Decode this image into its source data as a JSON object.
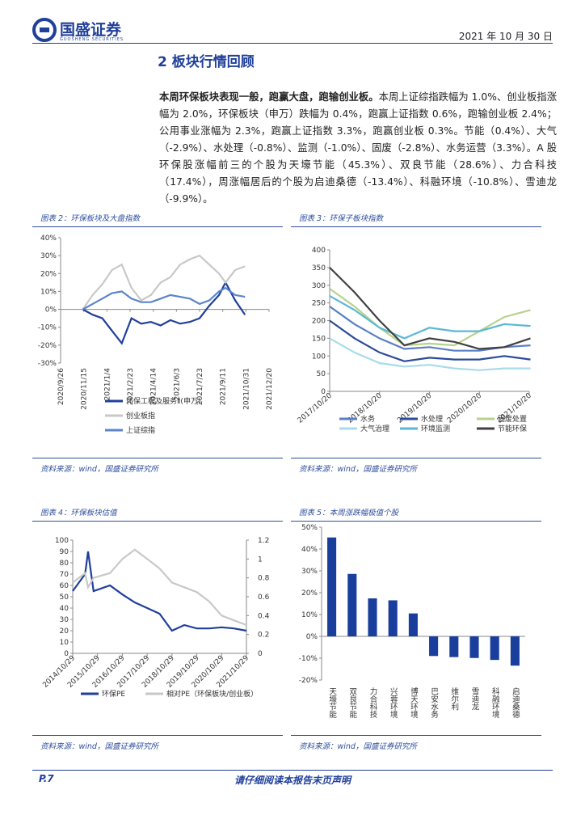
{
  "header": {
    "logo": "国盛证券",
    "logo_sub": "GUOSHENG SECURITIES",
    "date": "2021 年 10 月 30 日"
  },
  "section": {
    "title": "2 板块行情回顾"
  },
  "paragraph": {
    "bold": "本周环保板块表现一般，跑赢大盘，跑输创业板。",
    "text": "本周上证综指跌幅为 1.0%、创业板指涨幅为 2.0%，环保板块（申万）跌幅为 0.4%，跑赢上证指数 0.6%，跑输创业板 2.4%；公用事业涨幅为 2.3%，跑赢上证指数 3.3%，跑赢创业板 0.3%。节能（0.4%）、大气（-2.9%）、水处理（-0.8%）、监测（-1.0%）、固废（-2.8%）、水务运营（3.3%）。A 股环保股涨幅前三的个股为天壕节能（45.3%）、双良节能（28.6%）、力合科技（17.4%），周涨幅居后的个股为启迪桑德（-13.4%）、科融环境（-10.8%）、雪迪龙（-9.9%）。"
  },
  "chart_data": [
    {
      "type": "line",
      "title": "图表 2：环保板块及大盘指数",
      "source": "资料来源：wind，国盛证券研究所",
      "x": [
        "2020/11/13",
        "2020/12/4",
        "2020/12/25",
        "2021/1/15",
        "2021/2/5",
        "2021/2/26",
        "2021/3/19",
        "2021/4/9",
        "2021/4/30",
        "2021/5/21",
        "2021/6/11",
        "2021/7/2",
        "2021/7/23",
        "2021/8/13",
        "2021/9/3",
        "2021/9/17",
        "2021/10/8",
        "2021/10/29"
      ],
      "xticks": [
        "2020/9/26",
        "2020/11/15",
        "2021/1/4",
        "2021/2/23",
        "2021/4/14",
        "2021/6/3",
        "2021/7/23",
        "2021/9/11",
        "2021/10/31",
        "2021/12/20"
      ],
      "ylim": [
        -30,
        40
      ],
      "yticks": [
        {
          "value": -30,
          "label": "-30%"
        },
        {
          "value": -20,
          "label": "-20%"
        },
        {
          "value": -10,
          "label": "-10%"
        },
        {
          "value": 0,
          "label": "0%"
        },
        {
          "value": 10,
          "label": "10%"
        },
        {
          "value": 20,
          "label": "20%"
        },
        {
          "value": 30,
          "label": "30%"
        },
        {
          "value": 40,
          "label": "40%"
        }
      ],
      "series": [
        {
          "name": "环保工程及服务Ⅱ(申万)",
          "color": "#1f3f9a",
          "values": [
            0,
            -3,
            -5,
            -12,
            -19,
            -5,
            -8,
            -7,
            -9,
            -6,
            -8,
            -7,
            -5,
            2,
            8,
            15,
            5,
            -3
          ]
        },
        {
          "name": "创业板指",
          "color": "#c8c8c8",
          "values": [
            0,
            8,
            14,
            22,
            25,
            12,
            5,
            8,
            15,
            18,
            25,
            28,
            30,
            25,
            20,
            15,
            22,
            24
          ]
        },
        {
          "name": "上证综指",
          "color": "#5b84c9",
          "values": [
            0,
            3,
            6,
            9,
            10,
            6,
            4,
            4,
            6,
            8,
            7,
            6,
            3,
            5,
            10,
            12,
            8,
            7
          ]
        }
      ]
    },
    {
      "type": "line",
      "title": "图表 3：环保子板块指数",
      "source": "资料来源：wind，国盛证券研究所",
      "x": [
        "2017/10/20",
        "2018/4/20",
        "2018/10/20",
        "2019/4/20",
        "2019/10/20",
        "2020/4/20",
        "2020/10/20",
        "2021/4/20",
        "2021/10/29"
      ],
      "xticks": [
        "2017/10/20",
        "2018/10/20",
        "2019/10/20",
        "2020/10/20",
        "2021/10/20"
      ],
      "ylim": [
        0,
        400
      ],
      "yticks": [
        0,
        50,
        100,
        150,
        200,
        250,
        300,
        350,
        400
      ],
      "series": [
        {
          "name": "水务",
          "color": "#5a7fc4",
          "values": [
            240,
            190,
            150,
            120,
            125,
            115,
            115,
            125,
            130
          ]
        },
        {
          "name": "水处理",
          "color": "#2a4a9a",
          "values": [
            200,
            150,
            110,
            85,
            95,
            90,
            90,
            100,
            90
          ]
        },
        {
          "name": "固废处置",
          "color": "#b7d28c",
          "values": [
            290,
            240,
            180,
            130,
            135,
            130,
            170,
            210,
            230
          ]
        },
        {
          "name": "大气治理",
          "color": "#a8dbe9",
          "values": [
            150,
            110,
            80,
            70,
            75,
            65,
            60,
            65,
            65
          ]
        },
        {
          "name": "环境监测",
          "color": "#5bb8d4",
          "values": [
            270,
            230,
            180,
            150,
            180,
            170,
            170,
            190,
            185
          ]
        },
        {
          "name": "节能环保",
          "color": "#404040",
          "values": [
            350,
            280,
            200,
            130,
            150,
            140,
            120,
            125,
            150
          ]
        }
      ]
    },
    {
      "type": "line",
      "title": "图表 4：环保板块估值",
      "source": "资料来源：wind，国盛证券研究所",
      "x": [
        "2014/10/29",
        "2015/4/29",
        "2015/6/12",
        "2015/9/1",
        "2016/4/29",
        "2016/10/29",
        "2017/4/29",
        "2017/10/29",
        "2018/4/29",
        "2018/10/29",
        "2019/4/29",
        "2019/10/29",
        "2020/4/29",
        "2020/10/29",
        "2021/4/29",
        "2021/10/29"
      ],
      "xticks": [
        "2014/10/29",
        "2015/10/29",
        "2016/10/29",
        "2017/10/29",
        "2018/10/29",
        "2019/10/29",
        "2020/10/29",
        "2021/10/29"
      ],
      "ylim": [
        0,
        100
      ],
      "yticks": [
        0,
        10,
        20,
        30,
        40,
        50,
        60,
        70,
        80,
        90,
        100
      ],
      "y2lim": [
        0,
        1.2
      ],
      "y2ticks": [
        0,
        0.2,
        0.4,
        0.6,
        0.8,
        1,
        1.2
      ],
      "series": [
        {
          "name": "环保PE",
          "color": "#1f3f9a",
          "values": [
            55,
            70,
            90,
            55,
            60,
            52,
            45,
            40,
            35,
            20,
            25,
            22,
            22,
            23,
            22,
            20
          ]
        },
        {
          "name": "相对PE（环保板块/创业板）",
          "color": "#c8c8c8",
          "axis": "y2",
          "values": [
            0.75,
            0.85,
            0.7,
            0.8,
            0.85,
            1,
            1.1,
            1,
            0.9,
            0.75,
            0.7,
            0.65,
            0.55,
            0.4,
            0.35,
            0.3
          ]
        }
      ]
    },
    {
      "type": "bar",
      "title": "图表 5：本周涨跌幅极值个股",
      "source": "资料来源：wind，国盛证券研究所",
      "categories": [
        "天壕节能",
        "双良节能",
        "力合科技",
        "兴蓉环境",
        "博天环境",
        "巴安水务",
        "维尔利",
        "雪迪龙",
        "科融环境",
        "启迪桑德"
      ],
      "values": [
        45.3,
        28.6,
        17.4,
        16.5,
        10.5,
        -9,
        -9.5,
        -9.9,
        -10.8,
        -13.4
      ],
      "color": "#1a3e9c",
      "ylim": [
        -20,
        50
      ],
      "yticks": [
        {
          "value": -20,
          "label": "-20%"
        },
        {
          "value": -10,
          "label": "-10%"
        },
        {
          "value": 0,
          "label": "0%"
        },
        {
          "value": 10,
          "label": "10%"
        },
        {
          "value": 20,
          "label": "20%"
        },
        {
          "value": 30,
          "label": "30%"
        },
        {
          "value": 40,
          "label": "40%"
        },
        {
          "value": 50,
          "label": "50%"
        }
      ]
    }
  ],
  "footer": {
    "page": "P.7",
    "notice": "请仔细阅读本报告末页声明"
  }
}
